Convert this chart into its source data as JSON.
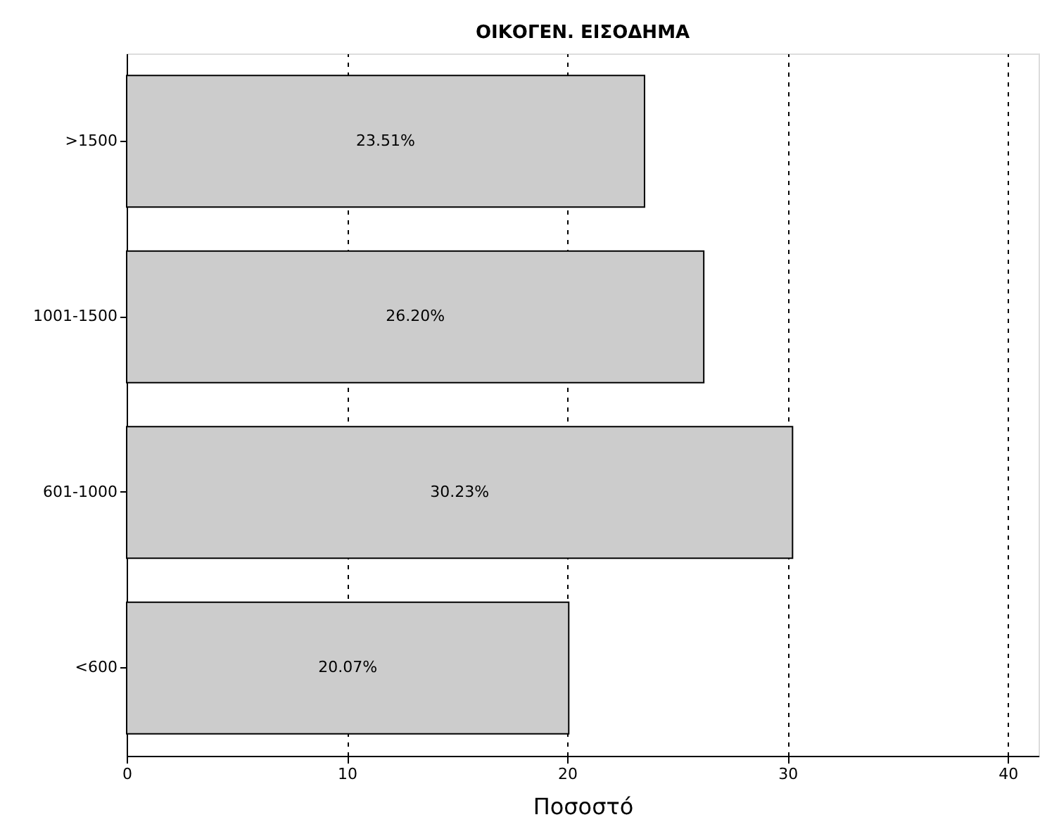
{
  "chart_data": {
    "type": "bar",
    "orientation": "horizontal",
    "title": "ΟΙΚΟΓΕΝ. ΕΙΣΟΔΗΜΑ",
    "xlabel": "Ποσοστό",
    "categories": [
      ">1500",
      "1001-1500",
      "601-1000",
      "<600"
    ],
    "values": [
      23.51,
      26.2,
      30.23,
      20.07
    ],
    "value_labels": [
      "23.51%",
      "26.20%",
      "30.23%",
      "20.07%"
    ],
    "color": "#cccccc",
    "xlim": [
      0,
      41.4
    ],
    "xticks": [
      0,
      10,
      20,
      30,
      40
    ],
    "grid": "x"
  }
}
